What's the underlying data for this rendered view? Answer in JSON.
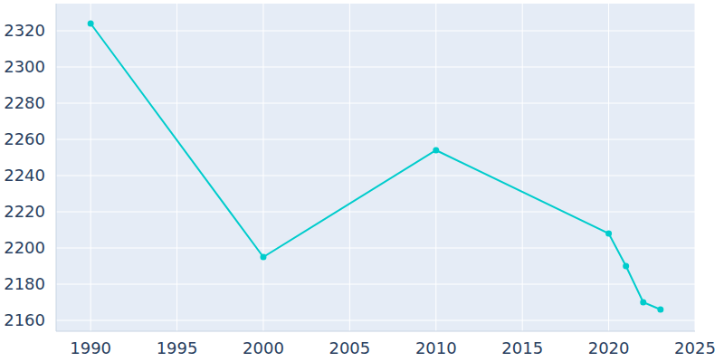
{
  "chart_data": {
    "type": "line",
    "x": [
      1990,
      2000,
      2010,
      2020,
      2021,
      2022,
      2023
    ],
    "values": [
      2324,
      2195,
      2254,
      2208,
      2190,
      2170,
      2166
    ],
    "color": "#00cccc",
    "marker": "circle",
    "line_style": "solid",
    "xlim": [
      1988,
      2025
    ],
    "xticks": [
      1990,
      1995,
      2000,
      2005,
      2010,
      2015,
      2020,
      2025
    ],
    "ylim": [
      2154,
      2335
    ],
    "yticks": [
      2160,
      2180,
      2200,
      2220,
      2240,
      2260,
      2280,
      2300,
      2320
    ],
    "grid": true
  }
}
